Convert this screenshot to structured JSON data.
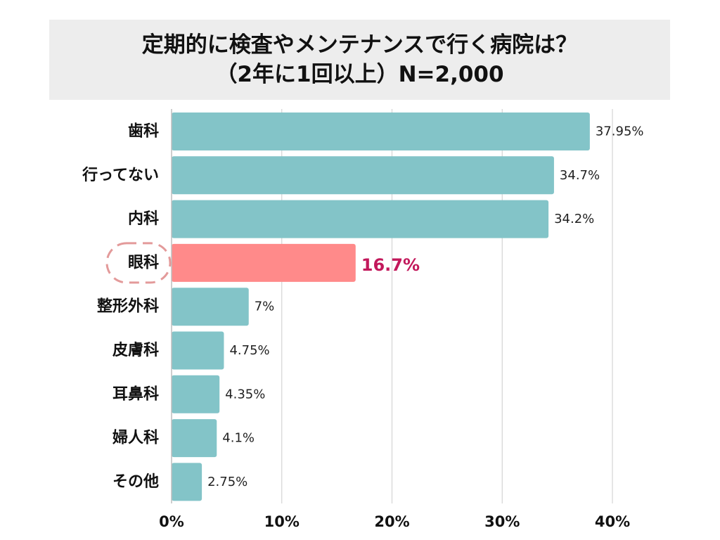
{
  "chart_data": {
    "type": "bar",
    "orientation": "horizontal",
    "title_line1": "定期的に検査やメンテナンスで行く病院は？",
    "title_line2": "（2年に1回以上）N=2,000",
    "categories": [
      "歯科",
      "行ってない",
      "内科",
      "眼科",
      "整形外科",
      "皮膚科",
      "耳鼻科",
      "婦人科",
      "その他"
    ],
    "values": [
      37.95,
      34.7,
      34.2,
      16.7,
      7,
      4.75,
      4.35,
      4.1,
      2.75
    ],
    "value_labels": [
      "37.95%",
      "34.7%",
      "34.2%",
      "16.7%",
      "7%",
      "4.75%",
      "4.35%",
      "4.1%",
      "2.75%"
    ],
    "highlight_index": 3,
    "xlim": [
      0,
      40
    ],
    "xticks": [
      0,
      10,
      20,
      30,
      40
    ],
    "xtick_labels": [
      "0%",
      "10%",
      "20%",
      "30%",
      "40%"
    ],
    "grid": "vertical",
    "bar_color": "#83c4c8",
    "highlight_color": "#ff8a8a",
    "highlight_label_color": "#c2185b",
    "highlight_outline_color": "#e39a9a"
  }
}
